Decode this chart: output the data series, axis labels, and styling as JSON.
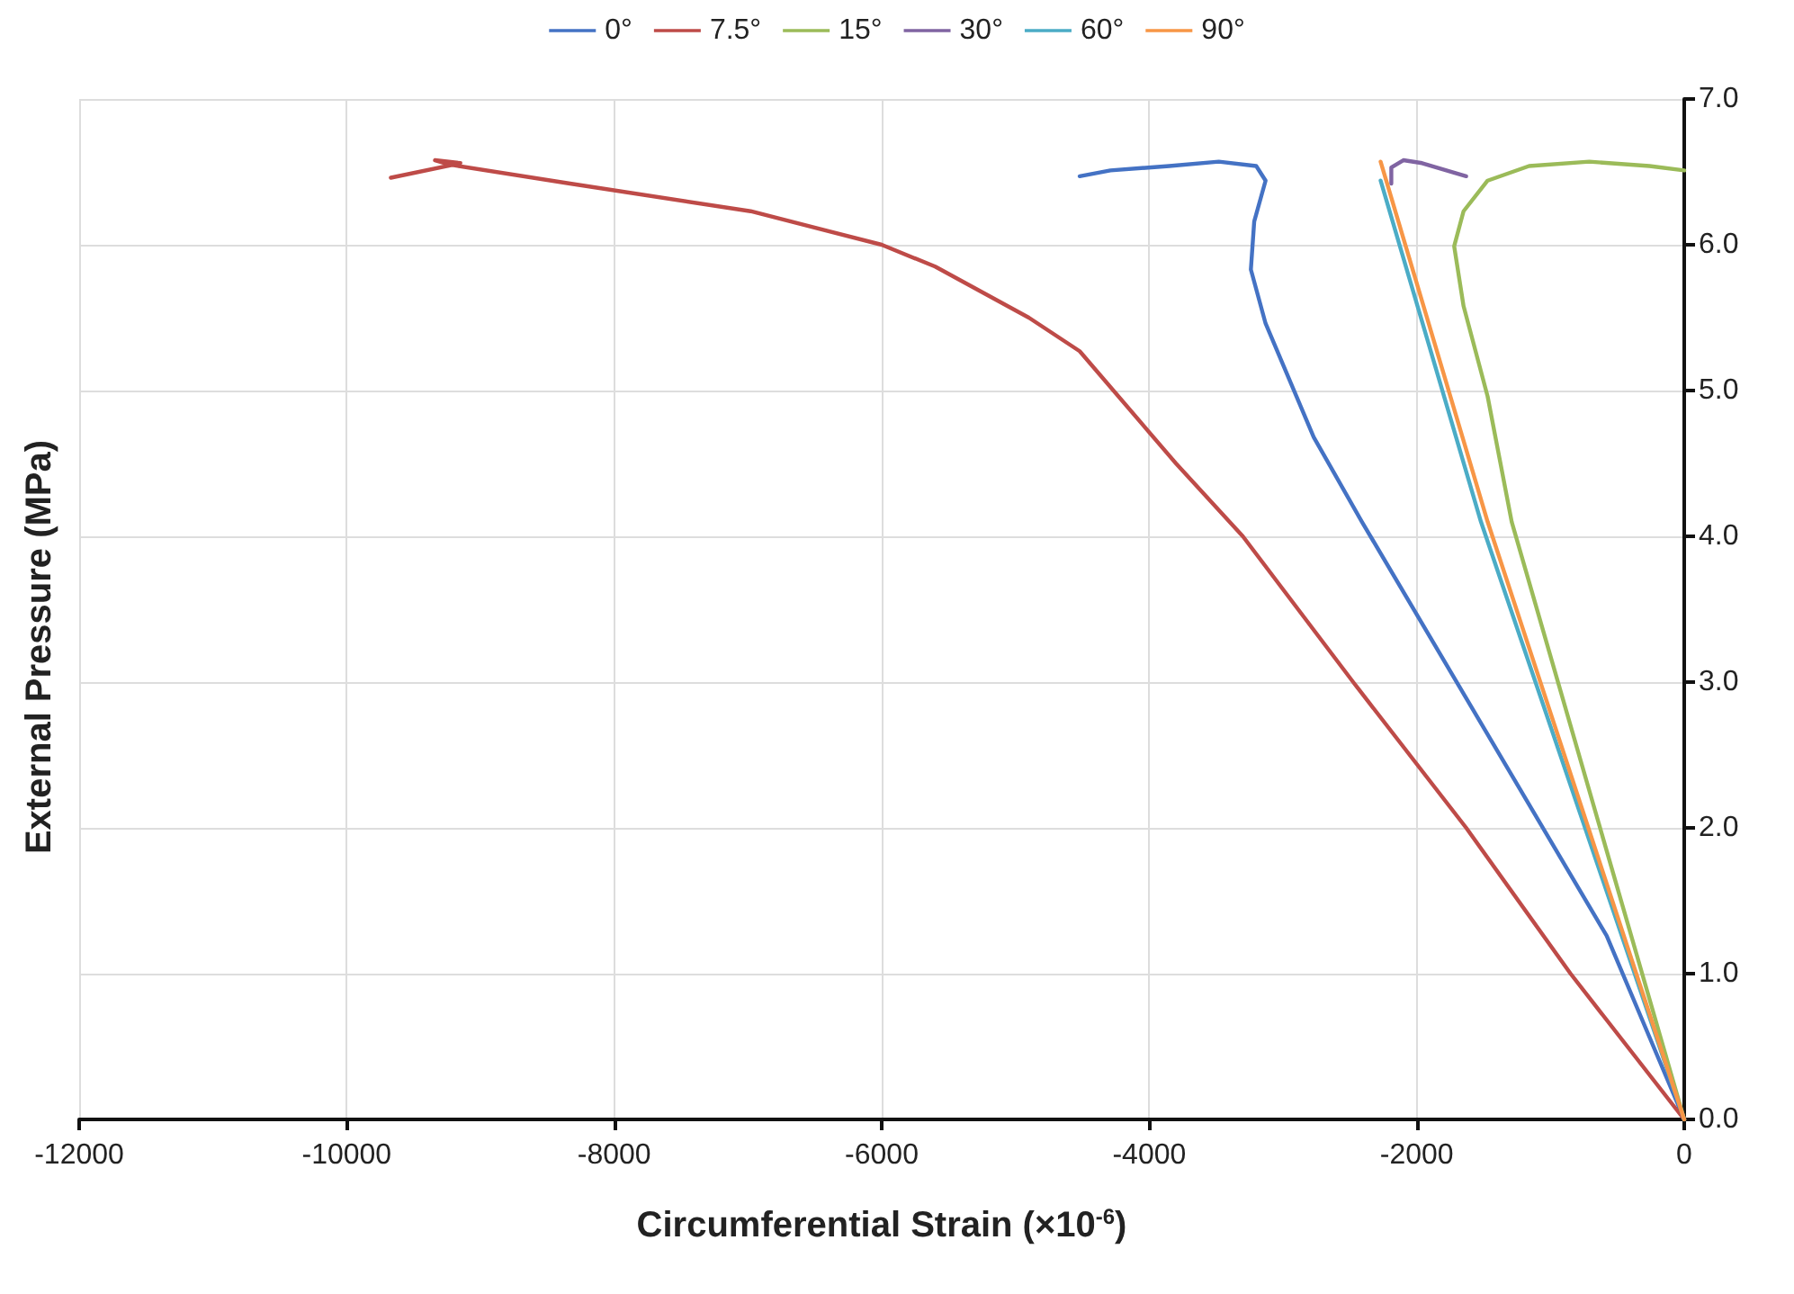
{
  "chart_data": {
    "type": "line",
    "xlabel": "Circumferential Strain (×10$^{-6}$)",
    "ylabel": "External Pressure (MPa)",
    "xlim": [
      -12000,
      0
    ],
    "xticks": [
      -12000,
      -10000,
      -8000,
      -6000,
      -4000,
      -2000,
      0
    ],
    "ylim": [
      0,
      7
    ],
    "yticks": [
      {
        "value": 0,
        "label": "0.0"
      },
      {
        "value": 1,
        "label": "1.0"
      },
      {
        "value": 2,
        "label": "2.0"
      },
      {
        "value": 3,
        "label": "3.0"
      },
      {
        "value": 4,
        "label": "4.0"
      },
      {
        "value": 5,
        "label": "5.0"
      },
      {
        "value": 6,
        "label": "6.0"
      },
      {
        "value": 7,
        "label": "7.0"
      }
    ],
    "grid": true,
    "legend": "top",
    "marker": "none",
    "line_style": "solid",
    "series": [
      {
        "name": "0°",
        "color": "#4472c4",
        "x": [
          0,
          -580,
          -2410,
          -2770,
          -3130,
          -3240,
          -3215,
          -3130,
          -3200,
          -3480,
          -3850,
          -4290,
          -4520
        ],
        "values": [
          0,
          1.26,
          4.1,
          4.68,
          5.46,
          5.83,
          6.16,
          6.44,
          6.54,
          6.57,
          6.54,
          6.51,
          6.47
        ]
      },
      {
        "name": "7.5°",
        "color": "#be4b48",
        "x": [
          0,
          -850,
          -1630,
          -2475,
          -3300,
          -3800,
          -4520,
          -4900,
          -5600,
          -6000,
          -6980,
          -8330,
          -9230,
          -9340,
          -9150,
          -9670
        ],
        "values": [
          0,
          1,
          2,
          3,
          4,
          4.5,
          5.27,
          5.5,
          5.85,
          6.0,
          6.23,
          6.42,
          6.55,
          6.58,
          6.56,
          6.46
        ]
      },
      {
        "name": "15°",
        "color": "#9bbb59",
        "x": [
          0,
          -1290,
          -1470,
          -1650,
          -1720,
          -1650,
          -1470,
          -1160,
          -710,
          -260,
          0
        ],
        "values": [
          0,
          4.1,
          4.96,
          5.58,
          5.99,
          6.23,
          6.44,
          6.54,
          6.57,
          6.54,
          6.51
        ]
      },
      {
        "name": "30°",
        "color": "#8064a2",
        "x": [
          -2190,
          -2190,
          -2100,
          -1960,
          -1630
        ],
        "values": [
          6.42,
          6.53,
          6.58,
          6.56,
          6.47
        ]
      },
      {
        "name": "60°",
        "color": "#4bacc6",
        "x": [
          0,
          -1520,
          -2270
        ],
        "values": [
          0,
          4.1,
          6.44
        ]
      },
      {
        "name": "90°",
        "color": "#f79646",
        "x": [
          0,
          -1470,
          -2270
        ],
        "values": [
          0,
          4.1,
          6.57
        ]
      }
    ]
  }
}
